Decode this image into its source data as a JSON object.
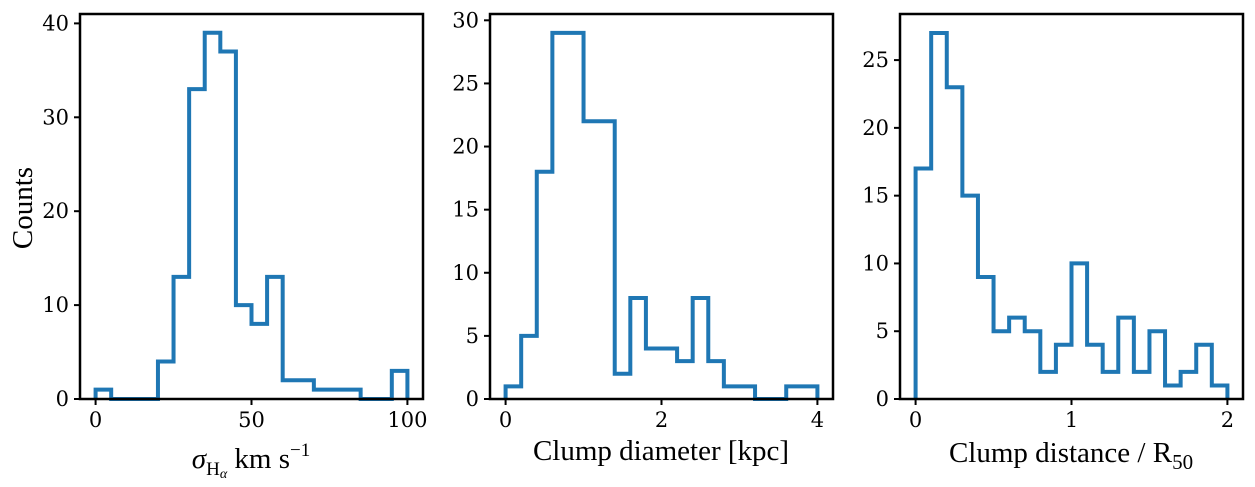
{
  "colors": {
    "histogram": "#1f77b4",
    "axes": "#000000"
  },
  "chart_data": [
    {
      "type": "histogram",
      "title": "",
      "xlabel_parts": [
        "σ",
        "H",
        "α",
        " km s",
        "−1"
      ],
      "ylabel": "Counts",
      "xlim": [
        -5,
        105
      ],
      "ylim": [
        0,
        41
      ],
      "xticks": [
        0,
        50,
        100
      ],
      "yticks": [
        0,
        10,
        20,
        30,
        40
      ],
      "bin_edges": [
        0,
        5,
        10,
        15,
        20,
        25,
        30,
        35,
        40,
        45,
        50,
        55,
        60,
        65,
        70,
        75,
        80,
        85,
        90,
        95,
        100
      ],
      "counts": [
        1,
        0,
        0,
        0,
        4,
        13,
        33,
        39,
        37,
        10,
        8,
        13,
        2,
        2,
        1,
        1,
        1,
        0,
        0,
        3
      ],
      "grid": false
    },
    {
      "type": "histogram",
      "title": "",
      "xlabel": "Clump diameter [kpc]",
      "ylabel": "",
      "xlim": [
        -0.2,
        4.2
      ],
      "ylim": [
        0,
        30.5
      ],
      "xticks": [
        0,
        2,
        4
      ],
      "yticks": [
        0,
        5,
        10,
        15,
        20,
        25,
        30
      ],
      "bin_edges": [
        0,
        0.2,
        0.4,
        0.6,
        0.8,
        1.0,
        1.2,
        1.4,
        1.6,
        1.8,
        2.0,
        2.2,
        2.4,
        2.6,
        2.8,
        3.0,
        3.2,
        3.4,
        3.6,
        3.8,
        4.0
      ],
      "counts": [
        1,
        5,
        18,
        29,
        29,
        22,
        22,
        2,
        8,
        4,
        4,
        3,
        8,
        3,
        1,
        1,
        0,
        0,
        1,
        1
      ],
      "grid": false
    },
    {
      "type": "histogram",
      "title": "",
      "xlabel_parts": [
        "Clump distance / R",
        "50"
      ],
      "ylabel": "",
      "xlim": [
        -0.1,
        2.1
      ],
      "ylim": [
        0,
        28.4
      ],
      "xticks": [
        0,
        1,
        2
      ],
      "yticks": [
        0,
        5,
        10,
        15,
        20,
        25
      ],
      "bin_edges": [
        0,
        0.1,
        0.2,
        0.3,
        0.4,
        0.5,
        0.6,
        0.7,
        0.8,
        0.9,
        1.0,
        1.1,
        1.2,
        1.3,
        1.4,
        1.5,
        1.6,
        1.7,
        1.8,
        1.9,
        2.0
      ],
      "counts": [
        17,
        27,
        23,
        15,
        9,
        5,
        6,
        5,
        2,
        4,
        10,
        4,
        2,
        6,
        2,
        5,
        1,
        2,
        4,
        1
      ],
      "grid": false
    }
  ]
}
